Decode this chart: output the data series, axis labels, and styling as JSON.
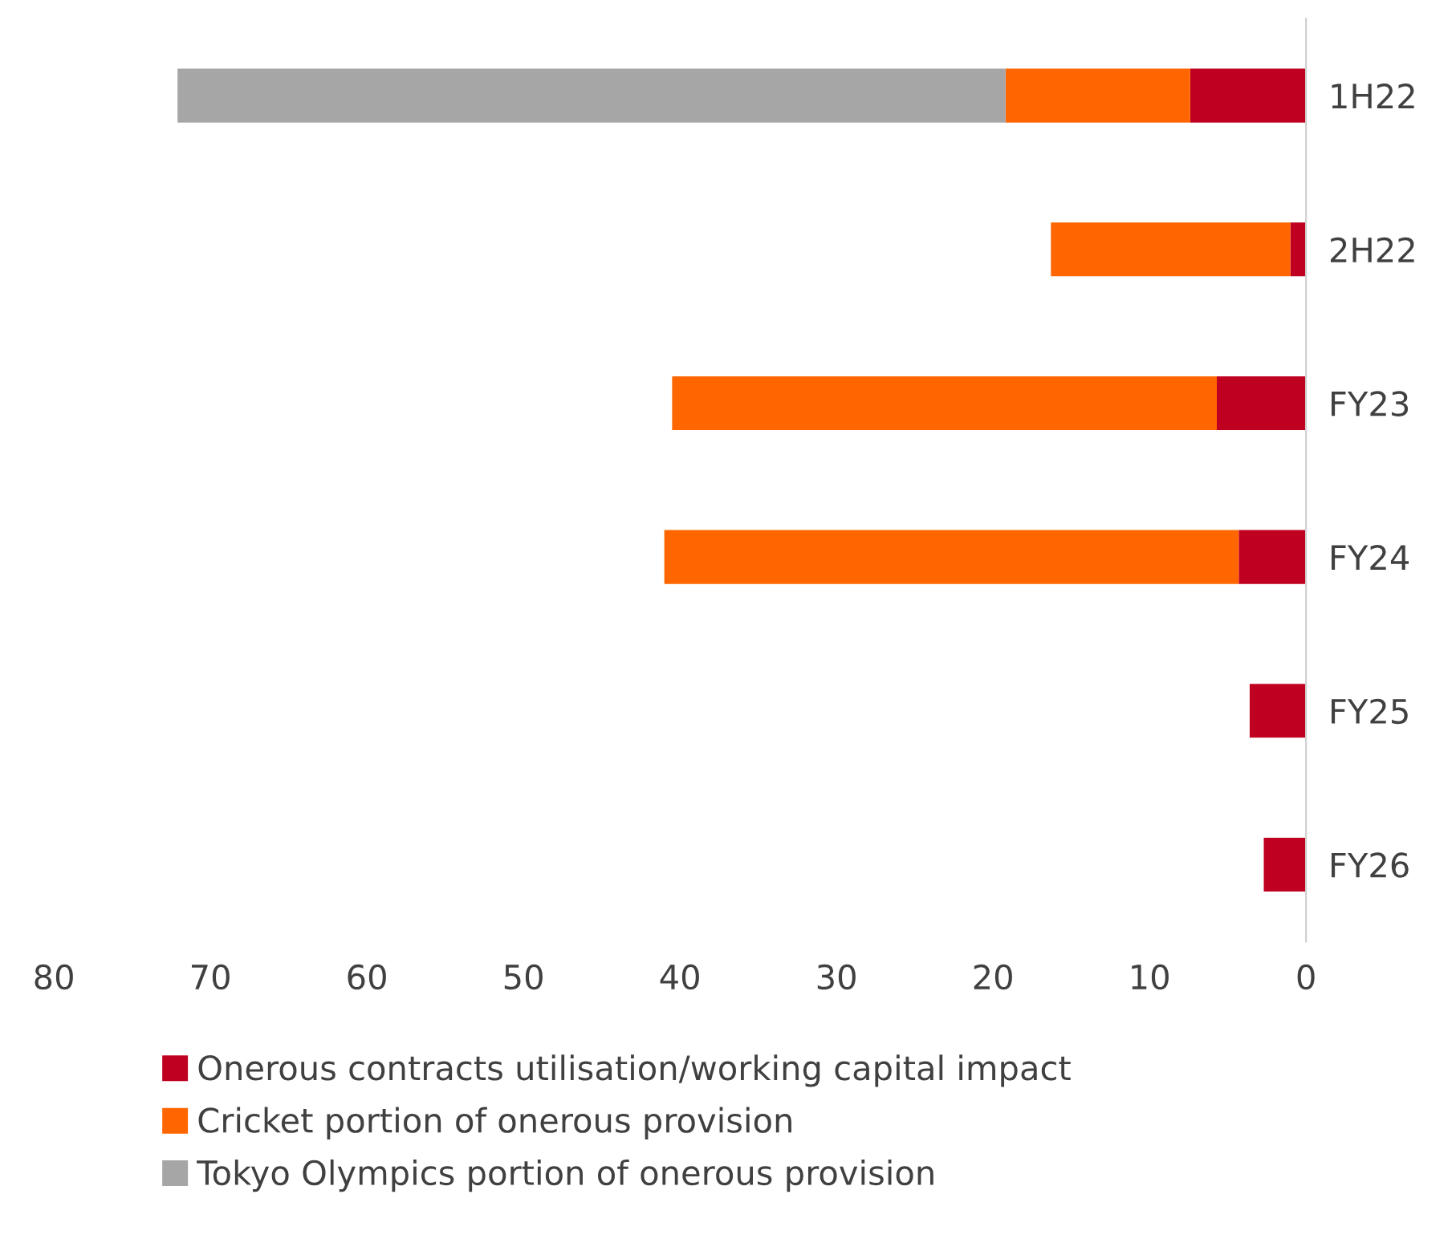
{
  "chart_data": {
    "type": "bar",
    "orientation": "horizontal",
    "stacked": true,
    "categories": [
      "1H22",
      "2H22",
      "FY23",
      "FY24",
      "FY25",
      "FY26"
    ],
    "series": [
      {
        "name": "Onerous contracts utilisation/working capital impact",
        "color": "#c00020",
        "values": [
          7.4,
          1.0,
          5.7,
          4.3,
          3.6,
          2.7
        ]
      },
      {
        "name": "Cricket portion of onerous provision",
        "color": "#ff6600",
        "values": [
          11.8,
          15.3,
          34.8,
          36.7,
          null,
          null
        ]
      },
      {
        "name": "Tokyo Olympics portion of onerous provision",
        "color": "#a6a6a6",
        "values": [
          52.9,
          null,
          null,
          null,
          null,
          null
        ]
      }
    ],
    "xlim": [
      80,
      0
    ],
    "xticks": [
      80,
      70,
      60,
      50,
      40,
      30,
      20,
      10,
      0
    ],
    "grid": false,
    "legend": "bottom"
  }
}
